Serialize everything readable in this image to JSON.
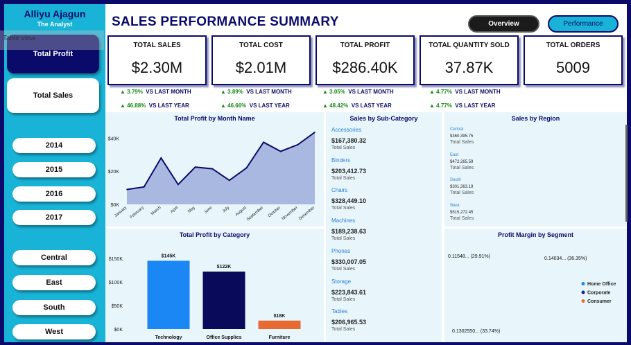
{
  "brand": {
    "name": "Alliyu Ajagun",
    "subtitle": "The Analyst"
  },
  "overlay": {
    "table_view": "Table view"
  },
  "nav": {
    "active": "Total Profit",
    "inactive": "Total Sales"
  },
  "years": [
    "2014",
    "2015",
    "2016",
    "2017"
  ],
  "regions": [
    "Central",
    "East",
    "South",
    "West"
  ],
  "header": {
    "title": "SALES PERFORMANCE SUMMARY",
    "tab_overview": "Overview",
    "tab_performance": "Performance"
  },
  "kpis": [
    {
      "label": "TOTAL SALES",
      "value": "$2.30M",
      "month_delta": "▲ 3.79%",
      "month_label": "VS LAST MONTH",
      "year_delta": "▲ 46.88%",
      "year_label": "VS LAST YEAR"
    },
    {
      "label": "TOTAL COST",
      "value": "$2.01M",
      "month_delta": "▲ 3.89%",
      "month_label": "VS LAST MONTH",
      "year_delta": "▲ 46.66%",
      "year_label": "VS LAST YEAR"
    },
    {
      "label": "TOTAL PROFIT",
      "value": "$286.40K",
      "month_delta": "▲ 3.05%",
      "month_label": "VS LAST MONTH",
      "year_delta": "▲ 48.42%",
      "year_label": "VS LAST YEAR"
    },
    {
      "label": "TOTAL QUANTITY SOLD",
      "value": "37.87K",
      "month_delta": "▲ 4.77%",
      "month_label": "VS LAST MONTH",
      "year_delta": "▲ 4.77%",
      "year_label": "VS LAST YEAR"
    },
    {
      "label": "TOTAL ORDERS",
      "value": "5009"
    }
  ],
  "subcategory": {
    "title": "Sales by Sub-Category",
    "caption": "Total Sales",
    "items": [
      {
        "name": "Accessories",
        "value": "$167,380.32"
      },
      {
        "name": "Binders",
        "value": "$203,412.73"
      },
      {
        "name": "Chairs",
        "value": "$328,449.10"
      },
      {
        "name": "Machines",
        "value": "$189,238.63"
      },
      {
        "name": "Phones",
        "value": "$330,007.05"
      },
      {
        "name": "Storage",
        "value": "$223,843.61"
      },
      {
        "name": "Tables",
        "value": "$206,965.53"
      }
    ]
  },
  "region_sales": {
    "title": "Sales by Region",
    "caption": "Total Sales",
    "items": [
      {
        "name": "Central",
        "value": "$360,395.75"
      },
      {
        "name": "East",
        "value": "$472,265.59"
      },
      {
        "name": "South",
        "value": "$301,363.19"
      },
      {
        "name": "West",
        "value": "$515,272.45"
      }
    ]
  },
  "chart_data": [
    {
      "type": "area",
      "title": "Total Profit by Month Name",
      "categories": [
        "January",
        "February",
        "March",
        "April",
        "May",
        "June",
        "July",
        "August",
        "September",
        "October",
        "November",
        "December"
      ],
      "values": [
        9000,
        10500,
        28000,
        12000,
        22500,
        21500,
        14500,
        22000,
        37500,
        32000,
        36000,
        43500
      ],
      "y_ticks": [
        "$0K",
        "$20K",
        "$40K"
      ],
      "ylim": [
        0,
        46000
      ],
      "color": "#0a0a6b",
      "fill": "#a9b8e0"
    },
    {
      "type": "bar",
      "title": "Total Profit by Category",
      "categories": [
        "Technology",
        "Office Supplies",
        "Furniture"
      ],
      "values": [
        145000,
        122000,
        18000
      ],
      "data_labels": [
        "$145K",
        "$122K",
        "$18K"
      ],
      "colors": [
        "#1a87f5",
        "#0a0a5a",
        "#e86a33"
      ],
      "y_ticks": [
        "$0K",
        "$50K",
        "$100K",
        "$150K"
      ],
      "ylim": [
        0,
        150000
      ]
    },
    {
      "type": "pie",
      "title": "Profit Margin by Segment",
      "series": [
        {
          "name": "Home Office",
          "percent": 36.35,
          "label": "0.14034... (36.35%)",
          "color": "#1a87f5"
        },
        {
          "name": "Corporate",
          "percent": 33.74,
          "label": "0.1302550... (33.74%)",
          "color": "#1225a0"
        },
        {
          "name": "Consumer",
          "percent": 29.91,
          "label": "0.11548... (29.91%)",
          "color": "#e86a33"
        }
      ],
      "legend": "right"
    }
  ]
}
